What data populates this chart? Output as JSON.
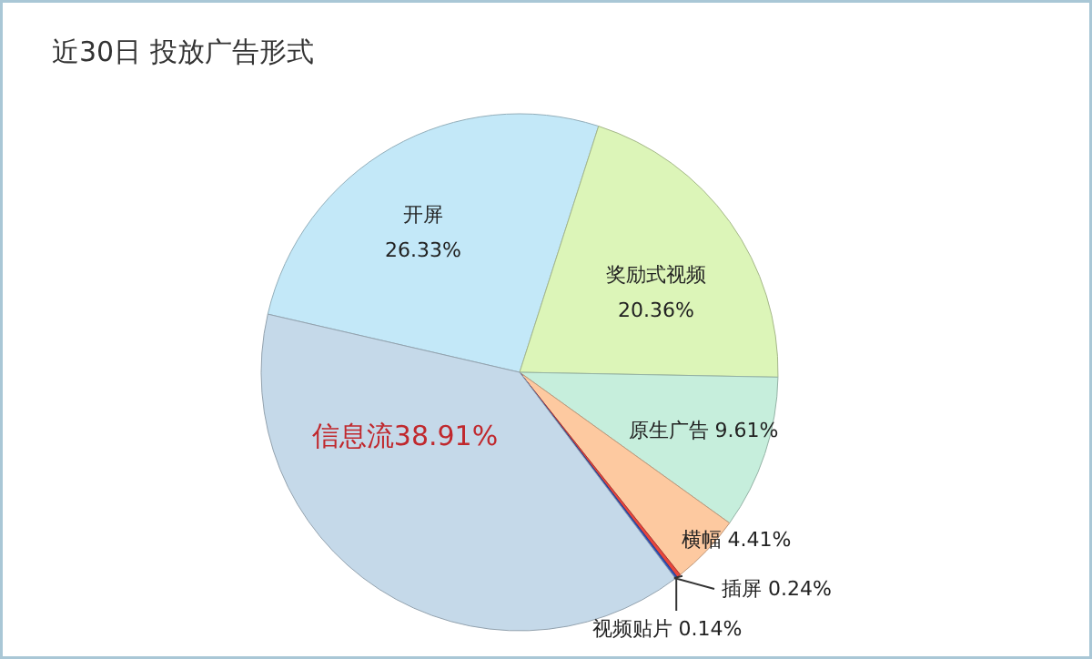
{
  "chart_data": {
    "type": "pie",
    "title": "近30日 投放广告形式",
    "categories": [
      "开屏",
      "奖励式视频",
      "原生广告",
      "横幅",
      "插屏",
      "视频贴片",
      "信息流"
    ],
    "values": [
      26.33,
      20.36,
      9.61,
      4.41,
      0.24,
      0.14,
      38.91
    ],
    "value_labels": [
      "26.33%",
      "20.36%",
      "9.61%",
      "4.41%",
      "0.24%",
      "0.14%",
      "38.91%"
    ],
    "colors": [
      "#c3e8f8",
      "#dcf5b8",
      "#c6eedc",
      "#fdc9a0",
      "#e8453c",
      "#3355bb",
      "#c5d9e9"
    ]
  }
}
